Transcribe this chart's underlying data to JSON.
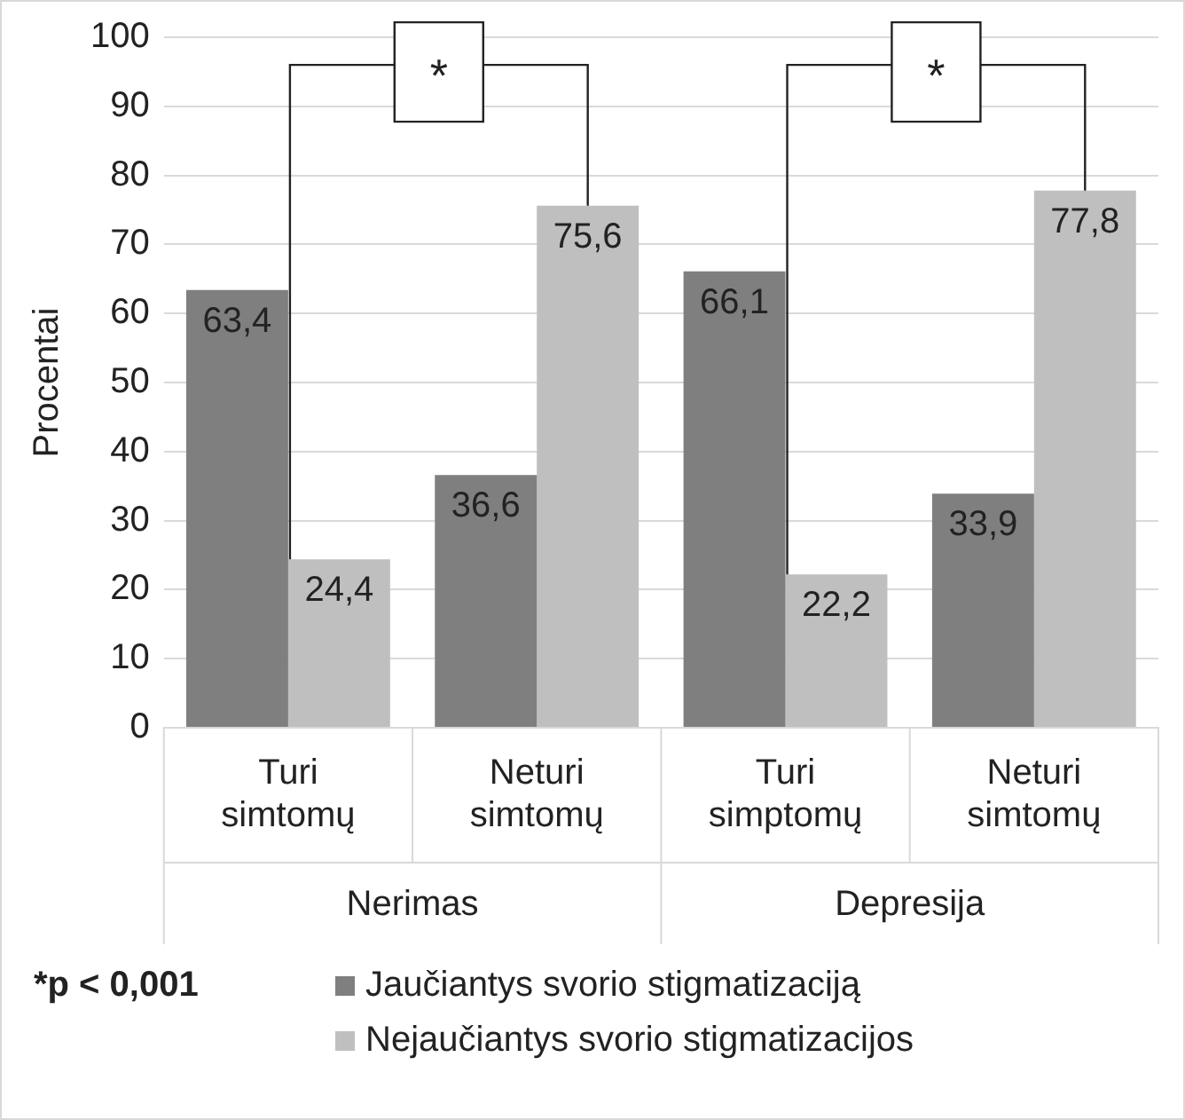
{
  "chart_data": {
    "type": "bar",
    "ylabel": "Procentai",
    "categories": [
      "Turi simtomų",
      "Neturi simtomų",
      "Turi simptomų",
      "Neturi simtomų"
    ],
    "series": [
      {
        "name": "Jaučiantys svorio stigmatizaciją",
        "color": "#7f7f7f",
        "values": [
          63.4,
          36.6,
          66.1,
          33.9
        ],
        "value_labels": [
          "63,4",
          "36,6",
          "66,1",
          "33,9"
        ]
      },
      {
        "name": "Nejaučiantys svorio stigmatizacijos",
        "color": "#bfbfbf",
        "values": [
          24.4,
          75.6,
          22.2,
          77.8
        ],
        "value_labels": [
          "24,4",
          "75,6",
          "22,2",
          "77,8"
        ]
      }
    ],
    "ylim": [
      0,
      100
    ],
    "yticks": [
      0,
      10,
      20,
      30,
      40,
      50,
      60,
      70,
      80,
      90,
      100
    ],
    "grid": "y",
    "legend": "bottom",
    "annotations": [
      "*",
      "*",
      "Nerimas",
      "Depresija",
      "*p < 0,001"
    ]
  }
}
